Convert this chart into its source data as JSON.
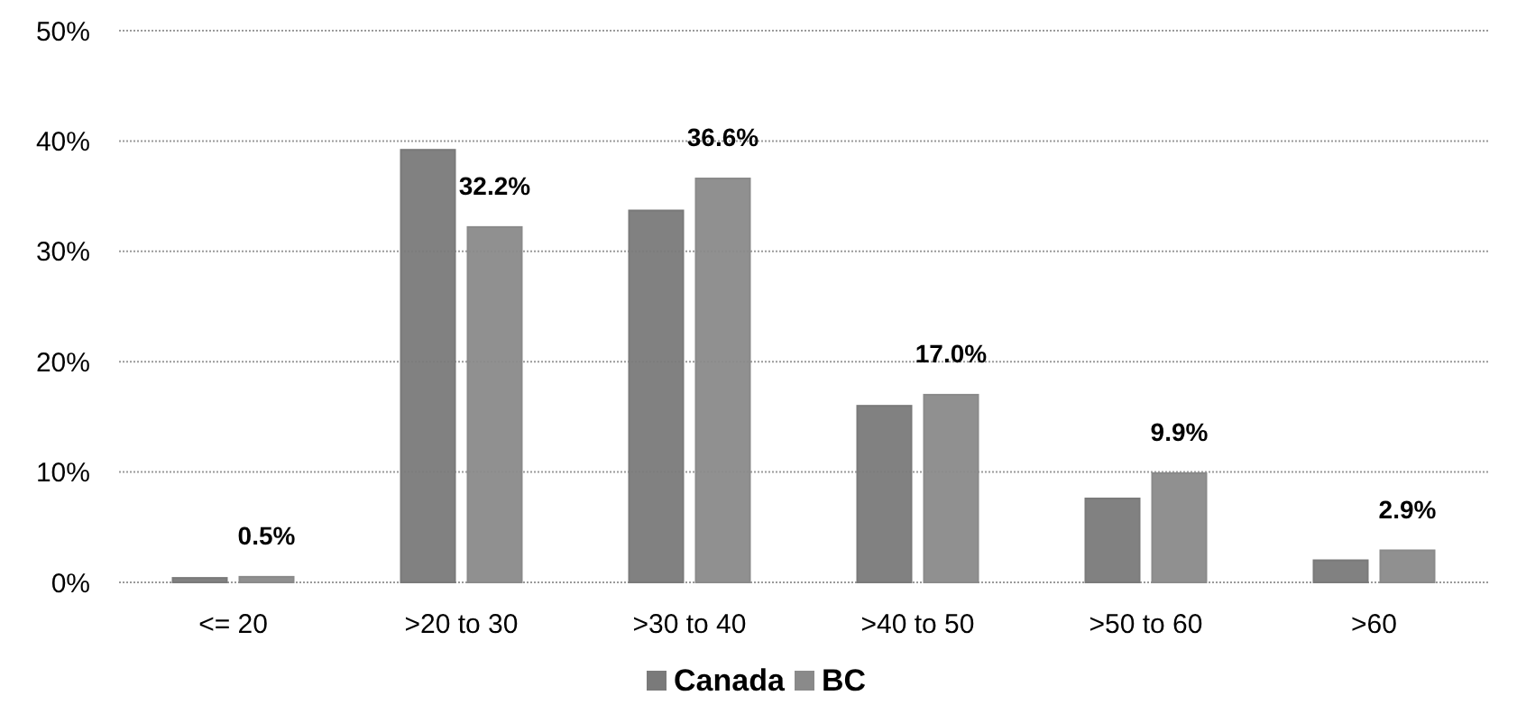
{
  "chart_data": {
    "type": "bar",
    "categories": [
      "<= 20",
      ">20 to 30",
      ">30 to 40",
      ">40 to 50",
      ">50 to 60",
      ">60"
    ],
    "series": [
      {
        "name": "Canada",
        "color": "#7a7a7a",
        "values": [
          0.4,
          39.2,
          33.7,
          16.0,
          7.6,
          2.0
        ]
      },
      {
        "name": "BC",
        "color": "#8a8a8a",
        "values": [
          0.5,
          32.2,
          36.6,
          17.0,
          9.9,
          2.9
        ],
        "value_labels": [
          "0.5%",
          "32.2%",
          "36.6%",
          "17.0%",
          "9.9%",
          "2.9%"
        ]
      }
    ],
    "ylim": [
      0,
      50
    ],
    "yticks": [
      {
        "value": 0,
        "label": "0%"
      },
      {
        "value": 10,
        "label": "10%"
      },
      {
        "value": 20,
        "label": "20%"
      },
      {
        "value": 30,
        "label": "30%"
      },
      {
        "value": 40,
        "label": "40%"
      },
      {
        "value": 50,
        "label": "50%"
      }
    ],
    "grid": "y",
    "legend": "bottom"
  }
}
